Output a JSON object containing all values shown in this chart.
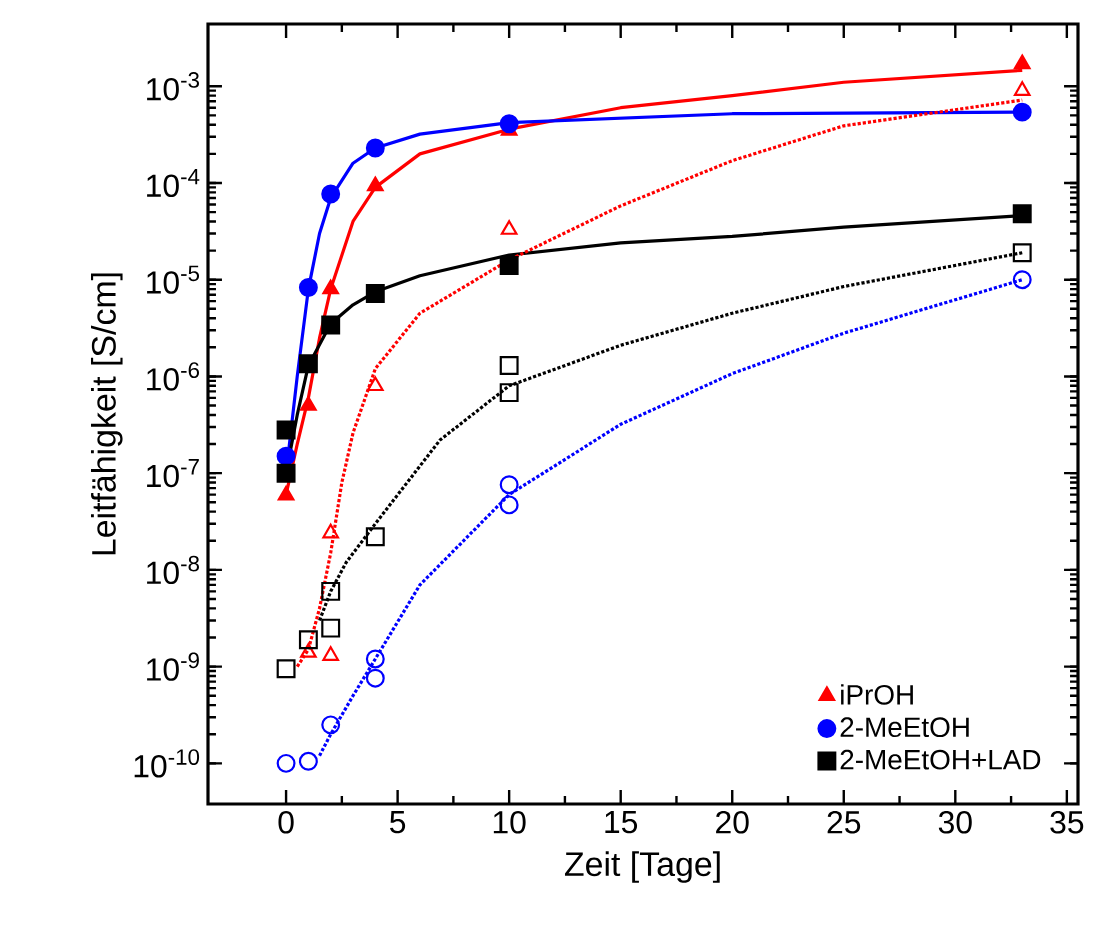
{
  "chart_data": {
    "type": "scatter",
    "xlabel": "Zeit [Tage]",
    "ylabel": "Leitfähigkeit [S/cm]",
    "log": "y",
    "legend": "bottom right",
    "grid": false,
    "xlim": [
      -3.5,
      35.5
    ],
    "ylim": [
      3.8e-11,
      0.0044
    ],
    "xticks": [
      0,
      5,
      10,
      15,
      20,
      25,
      30,
      35
    ],
    "yticks": [
      {
        "value": 1e-10,
        "label": "10$^{-10}$"
      },
      {
        "value": 1e-09,
        "label": "10$^{-9}$"
      },
      {
        "value": 1e-08,
        "label": "10$^{-8}$"
      },
      {
        "value": 1e-07,
        "label": "10$^{-7}$"
      },
      {
        "value": 1e-06,
        "label": "10$^{-6}$"
      },
      {
        "value": 1e-05,
        "label": "10$^{-5}$"
      },
      {
        "value": 0.0001,
        "label": "10$^{-4}$"
      },
      {
        "value": 0.001,
        "label": "10$^{-3}$"
      }
    ],
    "series": [
      {
        "type": "line",
        "color": "#ff0000",
        "line_style": "solid",
        "marker": "none",
        "x": [
          0,
          0.5,
          1,
          1.5,
          2,
          3,
          4,
          6,
          10,
          15,
          20,
          25,
          33
        ],
        "values": [
          6e-08,
          2e-07,
          6e-07,
          2.5e-06,
          8e-06,
          4e-05,
          9e-05,
          0.0002,
          0.00036,
          0.0006,
          0.0008,
          0.0011,
          0.00146
        ]
      },
      {
        "type": "line",
        "color": "#0000ff",
        "line_style": "solid",
        "marker": "none",
        "x": [
          0,
          0.5,
          1,
          1.5,
          2,
          3,
          4,
          6,
          10,
          20,
          33
        ],
        "values": [
          1e-07,
          1e-06,
          8e-06,
          3e-05,
          7e-05,
          0.00016,
          0.00023,
          0.00032,
          0.00042,
          0.00052,
          0.00054
        ]
      },
      {
        "type": "line",
        "color": "#000000",
        "line_style": "solid",
        "marker": "none",
        "x": [
          0,
          0.5,
          1,
          2,
          3,
          4,
          6,
          10,
          15,
          20,
          25,
          33
        ],
        "values": [
          1e-07,
          4e-07,
          1.3e-06,
          3.5e-06,
          5.5e-06,
          7.5e-06,
          1.1e-05,
          1.8e-05,
          2.4e-05,
          2.8e-05,
          3.5e-05,
          4.6e-05
        ]
      },
      {
        "type": "line",
        "color": "#ff0000",
        "line_style": "dotted",
        "marker": "none",
        "x": [
          0.5,
          1,
          1.5,
          2,
          2.5,
          3,
          4,
          6,
          10,
          15,
          20,
          25,
          33
        ],
        "values": [
          1e-09,
          1.5e-09,
          4e-09,
          1.5e-08,
          8e-08,
          2.6e-07,
          1.2e-06,
          4.5e-06,
          1.6e-05,
          5.8e-05,
          0.00017,
          0.00039,
          0.00072
        ]
      },
      {
        "type": "line",
        "color": "#000000",
        "line_style": "dotted",
        "marker": "none",
        "x": [
          1.5,
          2,
          2.7,
          4,
          6.9,
          10,
          15,
          20,
          25,
          33
        ],
        "values": [
          3e-09,
          6e-09,
          1.2e-08,
          3e-08,
          2.2e-07,
          8e-07,
          2.1e-06,
          4.5e-06,
          8.5e-06,
          1.9e-05
        ]
      },
      {
        "type": "line",
        "color": "#0000ff",
        "line_style": "dotted",
        "marker": "none",
        "x": [
          1.5,
          2,
          3,
          4,
          6,
          10,
          15,
          20,
          25,
          33
        ],
        "values": [
          1.2e-10,
          2e-10,
          5e-10,
          1.2e-09,
          7e-09,
          6e-08,
          3.2e-07,
          1.07e-06,
          2.8e-06,
          1e-05
        ]
      },
      {
        "color": "#ff0000",
        "marker": "triangle",
        "x": [
          1,
          2,
          2,
          4,
          10,
          33
        ],
        "values": [
          1.4e-09,
          1.3e-09,
          2.4e-08,
          8e-07,
          3.3e-05,
          0.0009
        ]
      },
      {
        "color": "#000000",
        "marker": "square",
        "x": [
          0,
          1,
          2,
          2,
          4,
          10,
          10,
          33
        ],
        "values": [
          9.5e-10,
          1.9e-09,
          2.5e-09,
          6e-09,
          2.2e-08,
          1.3e-06,
          6.8e-07,
          1.9e-05
        ]
      },
      {
        "color": "#0000ff",
        "marker": "circle",
        "x": [
          0,
          1,
          2,
          4,
          4,
          10,
          10,
          33
        ],
        "values": [
          1e-10,
          1.05e-10,
          2.5e-10,
          1.2e-09,
          7.6e-10,
          7.6e-08,
          4.7e-08,
          1e-05
        ]
      },
      {
        "name": "iPrOH",
        "color": "#ff0000",
        "marker": "triangle",
        "x": [
          0,
          1,
          2,
          4,
          10,
          33
        ],
        "values": [
          5.9e-08,
          5e-07,
          8e-06,
          9.3e-05,
          0.00035,
          0.0017
        ]
      },
      {
        "name": "2-MeEtOH",
        "color": "#0000ff",
        "marker": "circle",
        "x": [
          0,
          1,
          2,
          4,
          10,
          33
        ],
        "values": [
          1.5e-07,
          8.3e-06,
          7.7e-05,
          0.00023,
          0.00041,
          0.00054
        ]
      },
      {
        "name": "2-MeEtOH+LAD",
        "color": "#000000",
        "marker": "square",
        "x": [
          0,
          0,
          1,
          2,
          4,
          10,
          33
        ],
        "values": [
          2.8e-07,
          1e-07,
          1.35e-06,
          3.4e-06,
          7.2e-06,
          1.4e-05,
          4.8e-05
        ]
      }
    ]
  }
}
